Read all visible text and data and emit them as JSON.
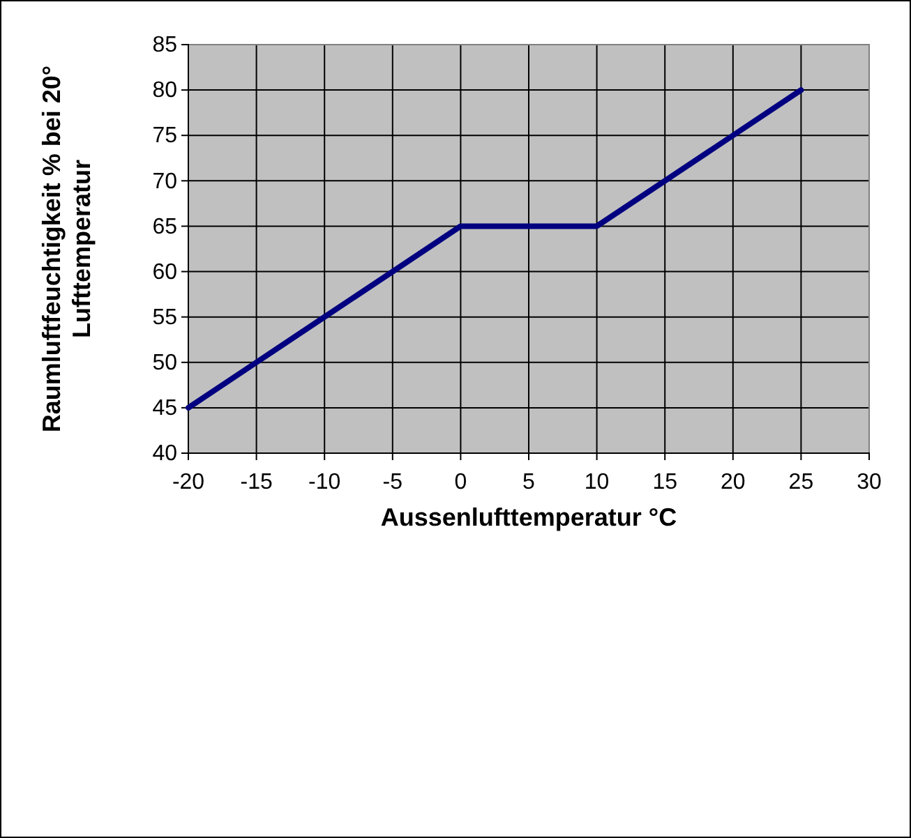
{
  "chart_data": {
    "type": "line",
    "xlabel": "Aussenlufttemperatur °C",
    "ylabel": "Raumluftfeuchtigkeit % bei 20°\nLufttemperatur",
    "xlim": [
      -20,
      30
    ],
    "xticks": [
      -20,
      -15,
      -10,
      -5,
      0,
      5,
      10,
      15,
      20,
      25,
      30
    ],
    "ylim": [
      40,
      85
    ],
    "yticks": [
      40,
      45,
      50,
      55,
      60,
      65,
      70,
      75,
      80,
      85
    ],
    "grid": true,
    "marker": "none",
    "line_style": "solid",
    "series": [
      {
        "color": "#000080",
        "x": [
          -20,
          -15,
          -10,
          -5,
          0,
          5,
          10,
          15,
          20,
          25
        ],
        "values": [
          45,
          50,
          55,
          60,
          65,
          65,
          65,
          70,
          75,
          80
        ]
      }
    ]
  }
}
